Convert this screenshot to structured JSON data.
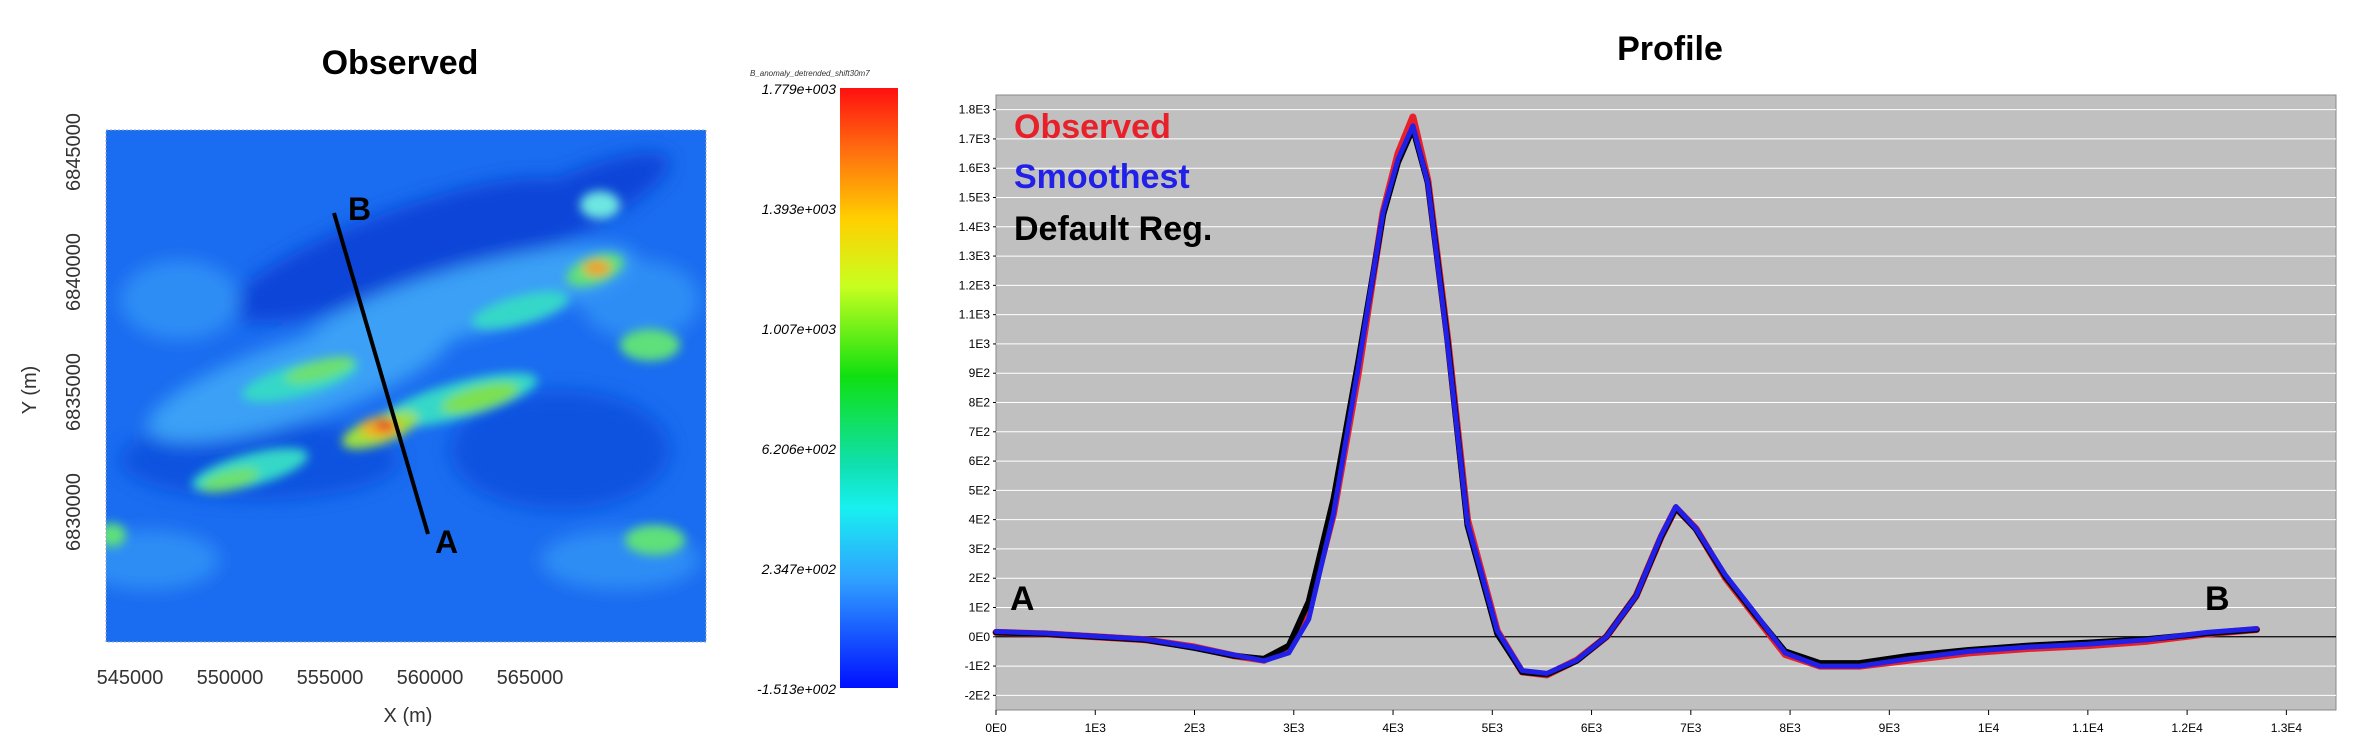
{
  "map": {
    "title": "Observed",
    "xlabel": "X (m)",
    "ylabel": "Y (m)",
    "xticks": [
      "545000",
      "550000",
      "555000",
      "560000",
      "565000"
    ],
    "yticks": [
      "6845000",
      "6840000",
      "6835000",
      "6830000"
    ],
    "line_start_label": "B",
    "line_end_label": "A"
  },
  "colorbar": {
    "title": "B_anomaly_detrended_shift30m7",
    "labels": [
      "1.779e+003",
      "1.393e+003",
      "1.007e+003",
      "6.206e+002",
      "2.347e+002",
      "-1.513e+002"
    ]
  },
  "chart_data": {
    "type": "line",
    "title": "Profile",
    "xlabel": "",
    "ylabel": "",
    "xlim": [
      0,
      13500
    ],
    "ylim": [
      -250,
      1850
    ],
    "x_tick_labels": [
      "0E0",
      "1E3",
      "2E3",
      "3E3",
      "4E3",
      "5E3",
      "6E3",
      "7E3",
      "8E3",
      "9E3",
      "1E4",
      "1.1E4",
      "1.2E4",
      "1.3E4"
    ],
    "y_tick_labels": [
      "-2E2",
      "-1E2",
      "0E0",
      "1E2",
      "2E2",
      "3E2",
      "4E2",
      "5E2",
      "6E2",
      "7E2",
      "8E2",
      "9E2",
      "1E3",
      "1.1E3",
      "1.2E3",
      "1.3E3",
      "1.4E3",
      "1.5E3",
      "1.6E3",
      "1.7E3",
      "1.8E3"
    ],
    "annotations": [
      "A",
      "B"
    ],
    "grid": true,
    "legend": "top-left",
    "series": [
      {
        "name": "Observed",
        "color": "#e8202a",
        "x": [
          0,
          500,
          1000,
          1500,
          2000,
          2400,
          2700,
          2950,
          3150,
          3400,
          3650,
          3900,
          4050,
          4200,
          4350,
          4550,
          4750,
          5050,
          5300,
          5550,
          5850,
          6150,
          6450,
          6700,
          6850,
          7050,
          7350,
          7650,
          7950,
          8300,
          8700,
          9200,
          9800,
          10400,
          11000,
          11600,
          12200,
          12700
        ],
        "y": [
          15,
          10,
          0,
          -10,
          -35,
          -65,
          -80,
          -40,
          90,
          420,
          900,
          1450,
          1650,
          1775,
          1560,
          1020,
          400,
          20,
          -120,
          -130,
          -80,
          0,
          140,
          340,
          440,
          370,
          200,
          70,
          -60,
          -100,
          -100,
          -80,
          -55,
          -40,
          -30,
          -15,
          10,
          25
        ]
      },
      {
        "name": "Smoothest",
        "color": "#2020e8",
        "x": [
          0,
          500,
          1000,
          1500,
          2000,
          2400,
          2700,
          2950,
          3150,
          3400,
          3650,
          3900,
          4050,
          4200,
          4350,
          4550,
          4750,
          5050,
          5300,
          5550,
          5850,
          6150,
          6450,
          6700,
          6850,
          7050,
          7350,
          7650,
          7950,
          8300,
          8700,
          9200,
          9800,
          10400,
          11000,
          11600,
          12200,
          12700
        ],
        "y": [
          18,
          12,
          2,
          -8,
          -35,
          -62,
          -82,
          -55,
          60,
          420,
          920,
          1450,
          1630,
          1745,
          1550,
          1000,
          390,
          20,
          -115,
          -125,
          -80,
          0,
          140,
          345,
          445,
          370,
          210,
          80,
          -55,
          -100,
          -100,
          -75,
          -50,
          -35,
          -25,
          -10,
          15,
          28
        ]
      },
      {
        "name": "Default Reg.",
        "color": "#000000",
        "x": [
          0,
          500,
          1000,
          1500,
          2000,
          2400,
          2700,
          2950,
          3150,
          3400,
          3650,
          3900,
          4050,
          4200,
          4350,
          4550,
          4750,
          5050,
          5300,
          5550,
          5850,
          6150,
          6450,
          6700,
          6850,
          7050,
          7350,
          7650,
          7950,
          8300,
          8700,
          9200,
          9800,
          10400,
          11000,
          11600,
          12200,
          12700
        ],
        "y": [
          15,
          10,
          0,
          -10,
          -38,
          -65,
          -75,
          -30,
          120,
          470,
          940,
          1440,
          1620,
          1735,
          1550,
          1010,
          380,
          10,
          -120,
          -128,
          -82,
          0,
          140,
          340,
          440,
          368,
          205,
          75,
          -50,
          -90,
          -90,
          -65,
          -45,
          -30,
          -20,
          -8,
          12,
          25
        ]
      }
    ]
  }
}
